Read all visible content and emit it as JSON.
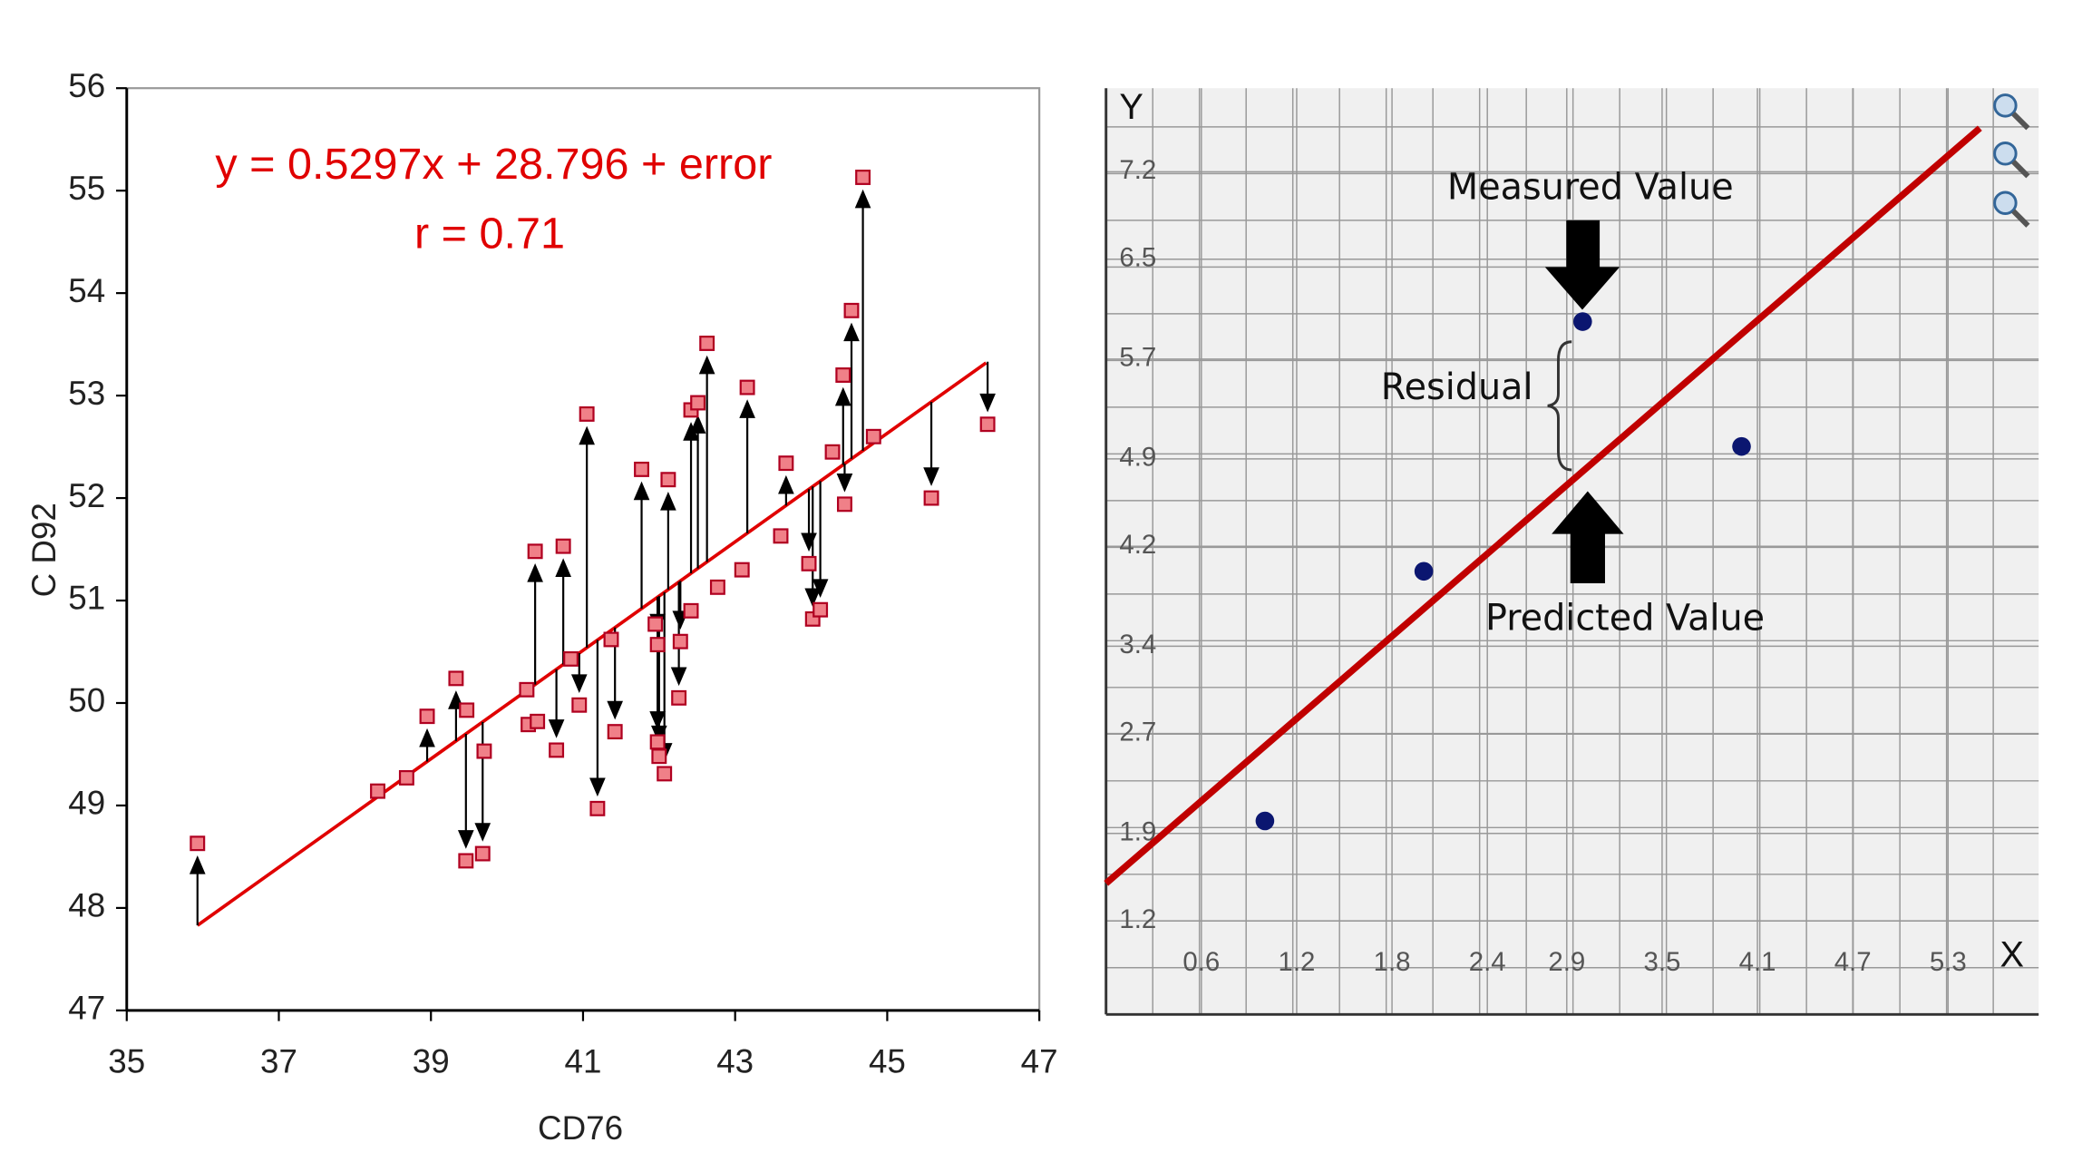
{
  "chart_data": [
    {
      "type": "scatter",
      "equation": "y = 0.5297x + 28.796 + error",
      "r_label": "r = 0.71",
      "x_label": "CD76",
      "y_label": "C D92",
      "x": [
        35.93,
        38.3,
        38.68,
        38.95,
        39.33,
        39.47,
        39.46,
        39.68,
        39.7,
        40.26,
        40.28,
        40.4,
        40.37,
        40.65,
        40.74,
        40.84,
        40.95,
        41.05,
        41.19,
        41.37,
        41.42,
        41.77,
        41.95,
        41.98,
        41.98,
        42.0,
        42.07,
        42.12,
        42.26,
        42.28,
        42.42,
        42.42,
        42.51,
        42.63,
        42.77,
        43.09,
        43.16,
        43.6,
        43.67,
        43.97,
        44.02,
        44.12,
        44.28,
        44.42,
        44.44,
        44.53,
        44.68,
        44.82,
        45.58,
        46.32
      ],
      "values": [
        48.63,
        49.14,
        49.27,
        49.87,
        50.24,
        49.93,
        48.46,
        48.53,
        49.53,
        50.13,
        49.79,
        49.82,
        51.48,
        49.54,
        51.53,
        50.43,
        49.98,
        52.82,
        48.97,
        50.62,
        49.72,
        52.28,
        50.77,
        50.57,
        49.62,
        49.48,
        49.31,
        52.18,
        50.05,
        50.6,
        50.9,
        52.86,
        52.93,
        53.51,
        51.13,
        51.3,
        53.08,
        51.63,
        52.34,
        51.36,
        50.82,
        50.91,
        52.45,
        53.2,
        51.94,
        53.83,
        55.13,
        52.6,
        52.0,
        52.72
      ],
      "color": "#f08088",
      "fit": {
        "x": [
          35.93,
          46.3
        ],
        "values": [
          47.83,
          53.32
        ],
        "color": "#e00000"
      },
      "xlim": [
        35,
        47
      ],
      "ylim": [
        47,
        56
      ],
      "xticks": [
        35,
        37,
        39,
        41,
        43,
        45,
        47
      ],
      "yticks": [
        47,
        48,
        49,
        50,
        51,
        52,
        53,
        54,
        55,
        56
      ]
    },
    {
      "type": "scatter",
      "x_label": "X",
      "y_label": "Y",
      "x": [
        1,
        2,
        3,
        4
      ],
      "values": [
        2,
        4,
        6,
        5
      ],
      "color": "#0b1670",
      "fit": {
        "x": [
          0,
          5.5
        ],
        "values": [
          1.5,
          7.55
        ],
        "color": "#c00000"
      },
      "xlim": [
        0,
        5.87
      ],
      "ylim": [
        0.45,
        7.87
      ],
      "xticks": [
        0.6,
        1.2,
        1.8,
        2.4,
        2.9,
        3.5,
        4.1,
        4.7,
        5.3
      ],
      "yticks": [
        1.2,
        1.9,
        2.7,
        3.4,
        4.2,
        4.9,
        5.7,
        6.5,
        7.2
      ],
      "grid": true,
      "annotations": [
        "Measured Value",
        "Residual",
        "Predicted Value"
      ]
    }
  ]
}
